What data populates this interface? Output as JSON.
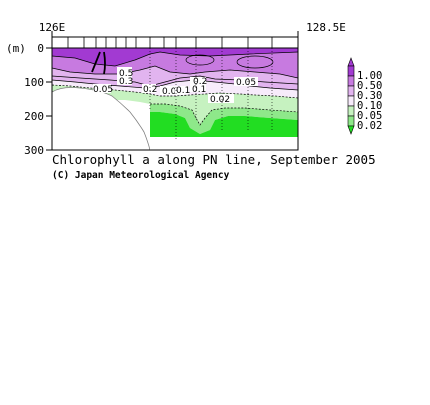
{
  "chart_data": {
    "type": "heatmap",
    "title": "Chlorophyll a along PN line, September 2005",
    "credit": "(C) Japan Meteorological Agency",
    "x_ticks": [
      "126E",
      "128.5E"
    ],
    "ylabel": "(m)",
    "y_ticks": [
      "0",
      "100",
      "200",
      "300"
    ],
    "ylim": [
      0,
      300
    ],
    "xlim": [
      126,
      128.5
    ],
    "colorbar": {
      "levels": [
        "1.00",
        "0.50",
        "0.30",
        "0.10",
        "0.05",
        "0.02"
      ],
      "colors": [
        "#a23ad2",
        "#c77ae0",
        "#e2b4ef",
        "#f7ebfb",
        "#c6f2c0",
        "#8ee88a",
        "#22dd22"
      ]
    },
    "contour_labels": [
      "0.5",
      "0.3",
      "0.05",
      "0.2",
      "0.05",
      "0.1",
      "0.2",
      "0.1",
      "0.05",
      "0.02"
    ]
  }
}
